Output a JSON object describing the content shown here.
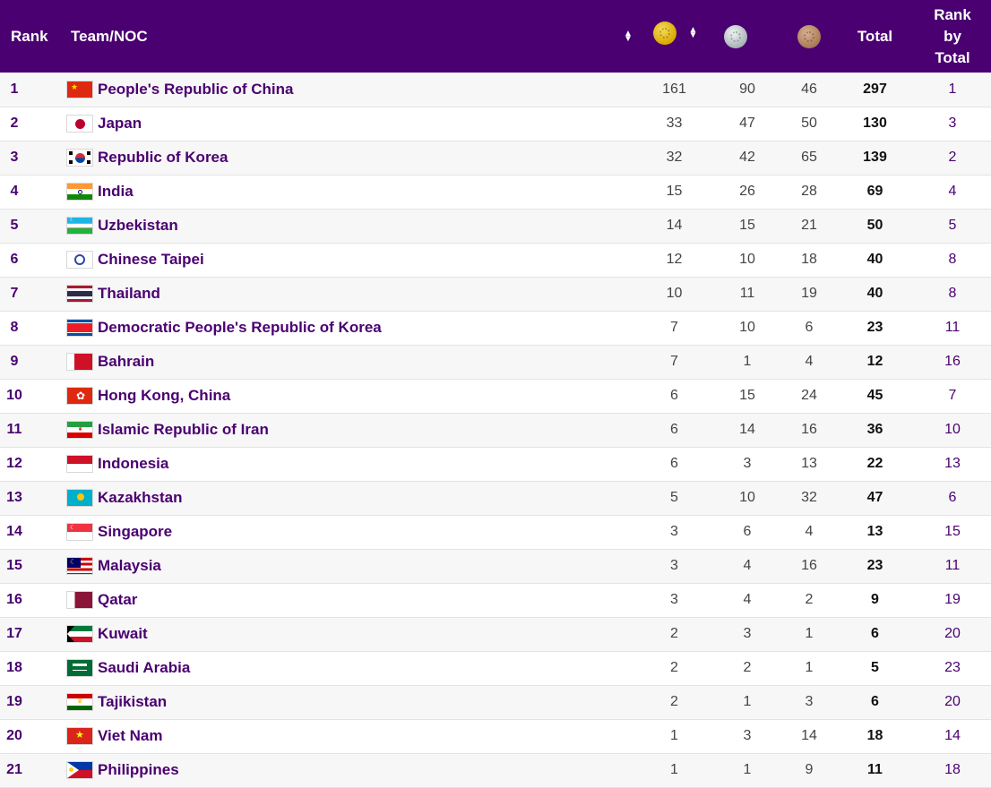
{
  "header": {
    "rank": "Rank",
    "team": "Team/NOC",
    "total": "Total",
    "rank_by_total": [
      "Rank",
      "by",
      "Total"
    ],
    "medals": [
      "gold-medal-icon",
      "silver-medal-icon",
      "bronze-medal-icon"
    ],
    "colors": {
      "background": "#4a0070",
      "text": "#ffffff"
    }
  },
  "rows": [
    {
      "rank": "1",
      "team": "People's Republic of China",
      "gold": "161",
      "silver": "90",
      "bronze": "46",
      "total": "297",
      "rbt": "1",
      "flag": "china-flag-icon"
    },
    {
      "rank": "2",
      "team": "Japan",
      "gold": "33",
      "silver": "47",
      "bronze": "50",
      "total": "130",
      "rbt": "3",
      "flag": "japan-flag-icon"
    },
    {
      "rank": "3",
      "team": "Republic of Korea",
      "gold": "32",
      "silver": "42",
      "bronze": "65",
      "total": "139",
      "rbt": "2",
      "flag": "korea-flag-icon"
    },
    {
      "rank": "4",
      "team": "India",
      "gold": "15",
      "silver": "26",
      "bronze": "28",
      "total": "69",
      "rbt": "4",
      "flag": "india-flag-icon"
    },
    {
      "rank": "5",
      "team": "Uzbekistan",
      "gold": "14",
      "silver": "15",
      "bronze": "21",
      "total": "50",
      "rbt": "5",
      "flag": "uzbekistan-flag-icon"
    },
    {
      "rank": "6",
      "team": "Chinese Taipei",
      "gold": "12",
      "silver": "10",
      "bronze": "18",
      "total": "40",
      "rbt": "8",
      "flag": "chinese-taipei-flag-icon"
    },
    {
      "rank": "7",
      "team": "Thailand",
      "gold": "10",
      "silver": "11",
      "bronze": "19",
      "total": "40",
      "rbt": "8",
      "flag": "thailand-flag-icon"
    },
    {
      "rank": "8",
      "team": "Democratic People's Republic of Korea",
      "gold": "7",
      "silver": "10",
      "bronze": "6",
      "total": "23",
      "rbt": "11",
      "flag": "dpr-korea-flag-icon"
    },
    {
      "rank": "9",
      "team": "Bahrain",
      "gold": "7",
      "silver": "1",
      "bronze": "4",
      "total": "12",
      "rbt": "16",
      "flag": "bahrain-flag-icon"
    },
    {
      "rank": "10",
      "team": "Hong Kong, China",
      "gold": "6",
      "silver": "15",
      "bronze": "24",
      "total": "45",
      "rbt": "7",
      "flag": "hong-kong-flag-icon"
    },
    {
      "rank": "11",
      "team": "Islamic Republic of Iran",
      "gold": "6",
      "silver": "14",
      "bronze": "16",
      "total": "36",
      "rbt": "10",
      "flag": "iran-flag-icon"
    },
    {
      "rank": "12",
      "team": "Indonesia",
      "gold": "6",
      "silver": "3",
      "bronze": "13",
      "total": "22",
      "rbt": "13",
      "flag": "indonesia-flag-icon"
    },
    {
      "rank": "13",
      "team": "Kazakhstan",
      "gold": "5",
      "silver": "10",
      "bronze": "32",
      "total": "47",
      "rbt": "6",
      "flag": "kazakhstan-flag-icon"
    },
    {
      "rank": "14",
      "team": "Singapore",
      "gold": "3",
      "silver": "6",
      "bronze": "4",
      "total": "13",
      "rbt": "15",
      "flag": "singapore-flag-icon"
    },
    {
      "rank": "15",
      "team": "Malaysia",
      "gold": "3",
      "silver": "4",
      "bronze": "16",
      "total": "23",
      "rbt": "11",
      "flag": "malaysia-flag-icon"
    },
    {
      "rank": "16",
      "team": "Qatar",
      "gold": "3",
      "silver": "4",
      "bronze": "2",
      "total": "9",
      "rbt": "19",
      "flag": "qatar-flag-icon"
    },
    {
      "rank": "17",
      "team": "Kuwait",
      "gold": "2",
      "silver": "3",
      "bronze": "1",
      "total": "6",
      "rbt": "20",
      "flag": "kuwait-flag-icon"
    },
    {
      "rank": "18",
      "team": "Saudi Arabia",
      "gold": "2",
      "silver": "2",
      "bronze": "1",
      "total": "5",
      "rbt": "23",
      "flag": "saudi-arabia-flag-icon"
    },
    {
      "rank": "19",
      "team": "Tajikistan",
      "gold": "2",
      "silver": "1",
      "bronze": "3",
      "total": "6",
      "rbt": "20",
      "flag": "tajikistan-flag-icon"
    },
    {
      "rank": "20",
      "team": "Viet Nam",
      "gold": "1",
      "silver": "3",
      "bronze": "14",
      "total": "18",
      "rbt": "14",
      "flag": "viet-nam-flag-icon"
    },
    {
      "rank": "21",
      "team": "Philippines",
      "gold": "1",
      "silver": "1",
      "bronze": "9",
      "total": "11",
      "rbt": "18",
      "flag": "philippines-flag-icon"
    }
  ]
}
